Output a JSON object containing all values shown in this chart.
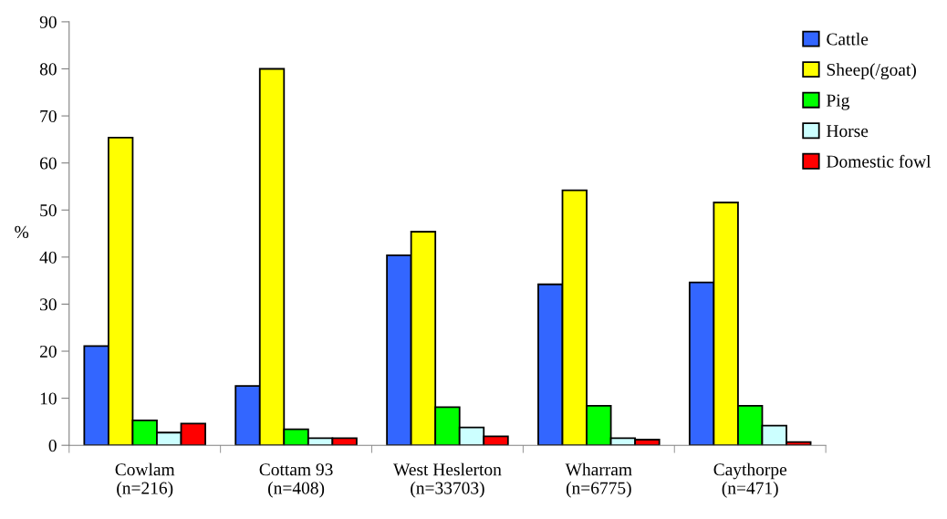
{
  "chart_data": {
    "type": "bar",
    "ylabel": "%",
    "categories": [
      "Cowlam\n(n=216)",
      "Cottam 93\n(n=408)",
      "West Heslerton\n(n=33703)",
      "Wharram\n(n=6775)",
      "Caythorpe\n(n=471)"
    ],
    "series": [
      {
        "name": "Cattle",
        "color": "#3366ff",
        "values": [
          21.1,
          12.6,
          40.4,
          34.2,
          34.6
        ]
      },
      {
        "name": "Sheep(/goat)",
        "color": "#ffff00",
        "values": [
          65.4,
          80.0,
          45.4,
          54.2,
          51.6
        ]
      },
      {
        "name": "Pig",
        "color": "#00ff00",
        "values": [
          5.3,
          3.4,
          8.1,
          8.4,
          8.4
        ]
      },
      {
        "name": "Horse",
        "color": "#ccffff",
        "values": [
          2.7,
          1.5,
          3.8,
          1.5,
          4.2
        ]
      },
      {
        "name": "Domestic fowl",
        "color": "#ff0000",
        "values": [
          4.6,
          1.5,
          1.9,
          1.2,
          0.7
        ]
      }
    ],
    "ylim": [
      0,
      90
    ],
    "yticks": [
      0,
      10,
      20,
      30,
      40,
      50,
      60,
      70,
      80,
      90
    ],
    "grid": false,
    "legend": "top right"
  }
}
